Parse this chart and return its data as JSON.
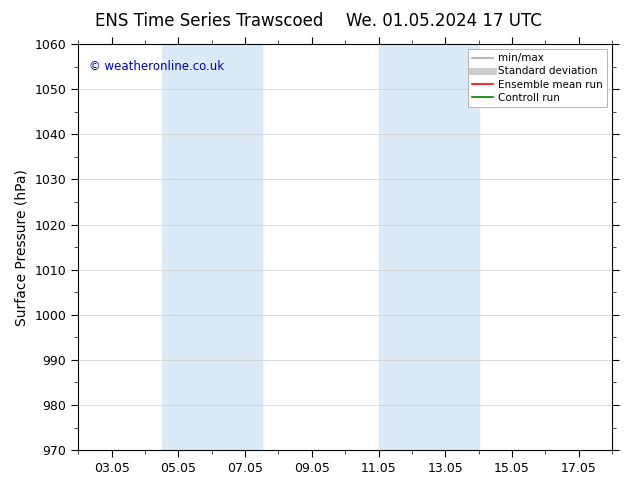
{
  "title_left": "ENS Time Series Trawscoed",
  "title_right": "We. 01.05.2024 17 UTC",
  "ylabel": "Surface Pressure (hPa)",
  "ylim": [
    970,
    1060
  ],
  "yticks": [
    970,
    980,
    990,
    1000,
    1010,
    1020,
    1030,
    1040,
    1050,
    1060
  ],
  "xtick_labels": [
    "03.05",
    "05.05",
    "07.05",
    "09.05",
    "11.05",
    "13.05",
    "15.05",
    "17.05"
  ],
  "xtick_positions": [
    2,
    4,
    6,
    8,
    10,
    12,
    14,
    16
  ],
  "xlim": [
    1,
    17
  ],
  "shaded_bands": [
    {
      "xmin": 3.5,
      "xmax": 5.0
    },
    {
      "xmin": 5.5,
      "xmax": 6.5
    },
    {
      "xmin": 10.5,
      "xmax": 11.5
    },
    {
      "xmin": 12.0,
      "xmax": 13.0
    }
  ],
  "shade_color": "#daeaf7",
  "background_color": "#ffffff",
  "copyright_text": "© weatheronline.co.uk",
  "copyright_color": "#0000bb",
  "legend_items": [
    {
      "label": "min/max",
      "color": "#aaaaaa",
      "lw": 1.2,
      "style": "-"
    },
    {
      "label": "Standard deviation",
      "color": "#cccccc",
      "lw": 5,
      "style": "-"
    },
    {
      "label": "Ensemble mean run",
      "color": "#ff0000",
      "lw": 1.2,
      "style": "-"
    },
    {
      "label": "Controll run",
      "color": "#008000",
      "lw": 1.2,
      "style": "-"
    }
  ],
  "grid_color": "#cccccc",
  "tick_fontsize": 9,
  "label_fontsize": 10,
  "title_fontsize": 12
}
